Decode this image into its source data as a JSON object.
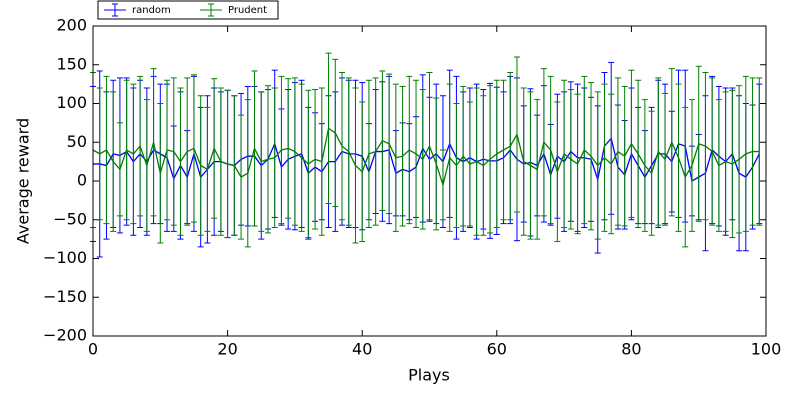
{
  "chart_data": {
    "type": "errorbar",
    "xlabel": "Plays",
    "ylabel": "Average reward",
    "xlim": [
      0,
      100
    ],
    "ylim": [
      -200,
      200
    ],
    "xticks": [
      0,
      20,
      40,
      60,
      80,
      100
    ],
    "yticks": [
      {
        "value": -200,
        "label": "−200"
      },
      {
        "value": -150,
        "label": "−150"
      },
      {
        "value": -100,
        "label": "−100"
      },
      {
        "value": -50,
        "label": "−50"
      },
      0,
      50,
      100,
      150,
      200
    ],
    "legend": "upper left",
    "x": [
      0,
      1,
      2,
      3,
      4,
      5,
      6,
      7,
      8,
      9,
      10,
      11,
      12,
      13,
      14,
      15,
      16,
      17,
      18,
      19,
      20,
      21,
      22,
      23,
      24,
      25,
      26,
      27,
      28,
      29,
      30,
      31,
      32,
      33,
      34,
      35,
      36,
      37,
      38,
      39,
      40,
      41,
      42,
      43,
      44,
      45,
      46,
      47,
      48,
      49,
      50,
      51,
      52,
      53,
      54,
      55,
      56,
      57,
      58,
      59,
      60,
      61,
      62,
      63,
      64,
      65,
      66,
      67,
      68,
      69,
      70,
      71,
      72,
      73,
      74,
      75,
      76,
      77,
      78,
      79,
      80,
      81,
      82,
      83,
      84,
      85,
      86,
      87,
      88,
      89,
      90,
      91,
      92,
      93,
      94,
      95,
      96,
      97,
      98,
      99
    ],
    "series": [
      {
        "name": "random",
        "color": "#0000ff",
        "values": [
          22,
          22,
          20,
          35,
          33,
          38,
          25,
          35,
          25,
          40,
          35,
          30,
          3,
          20,
          5,
          35,
          5,
          15,
          25,
          25,
          22,
          20,
          28,
          32,
          32,
          20,
          28,
          48,
          18,
          28,
          32,
          35,
          10,
          18,
          12,
          25,
          25,
          38,
          35,
          35,
          32,
          12,
          38,
          38,
          40,
          10,
          15,
          12,
          18,
          42,
          28,
          35,
          25,
          48,
          30,
          25,
          30,
          25,
          28,
          26,
          26,
          30,
          40,
          28,
          22,
          24,
          20,
          35,
          8,
          32,
          25,
          38,
          30,
          30,
          28,
          2,
          45,
          55,
          18,
          8,
          35,
          20,
          5,
          20,
          35,
          35,
          25,
          48,
          45,
          0,
          5,
          10,
          40,
          32,
          25,
          35,
          10,
          5,
          18,
          35
        ],
        "errors": [
          100,
          120,
          95,
          95,
          100,
          95,
          95,
          95,
          95,
          95,
          90,
          95,
          68,
          95,
          60,
          100,
          90,
          95,
          95,
          90,
          95,
          90,
          85,
          90,
          90,
          95,
          90,
          95,
          75,
          90,
          95,
          95,
          85,
          70,
          62,
          85,
          90,
          95,
          95,
          95,
          95,
          62,
          80,
          90,
          95,
          55,
          60,
          62,
          65,
          95,
          80,
          90,
          85,
          95,
          105,
          90,
          90,
          100,
          90,
          100,
          95,
          85,
          95,
          105,
          75,
          95,
          65,
          88,
          65,
          80,
          90,
          90,
          95,
          90,
          80,
          95,
          95,
          98,
          80,
          70,
          85,
          75,
          60,
          75,
          95,
          90,
          65,
          95,
          98,
          45,
          55,
          100,
          95,
          90,
          95,
          85,
          100,
          95,
          80,
          90
        ]
      },
      {
        "name": "Prudent",
        "color": "#008000",
        "values": [
          40,
          35,
          40,
          25,
          15,
          40,
          35,
          45,
          20,
          50,
          10,
          40,
          38,
          25,
          38,
          42,
          20,
          15,
          42,
          25,
          22,
          20,
          5,
          10,
          42,
          25,
          28,
          30,
          40,
          42,
          38,
          30,
          22,
          28,
          25,
          68,
          62,
          45,
          38,
          20,
          12,
          35,
          38,
          52,
          48,
          30,
          32,
          40,
          35,
          28,
          45,
          22,
          -5,
          30,
          20,
          32,
          22,
          25,
          20,
          28,
          35,
          40,
          45,
          60,
          25,
          20,
          15,
          50,
          40,
          12,
          35,
          28,
          22,
          40,
          32,
          20,
          30,
          22,
          38,
          32,
          48,
          35,
          20,
          10,
          38,
          28,
          50,
          30,
          5,
          20,
          48,
          45,
          38,
          20,
          25,
          22,
          28,
          35,
          38,
          38
        ],
        "errors": [
          100,
          85,
          95,
          90,
          60,
          90,
          90,
          90,
          85,
          95,
          90,
          90,
          95,
          95,
          95,
          95,
          90,
          80,
          90,
          95,
          95,
          90,
          80,
          95,
          100,
          90,
          95,
          90,
          95,
          90,
          95,
          95,
          95,
          90,
          95,
          97,
          95,
          95,
          95,
          100,
          90,
          95,
          95,
          90,
          90,
          95,
          90,
          95,
          95,
          90,
          95,
          85,
          45,
          95,
          80,
          90,
          80,
          95,
          90,
          95,
          95,
          90,
          95,
          100,
          95,
          95,
          90,
          95,
          95,
          90,
          95,
          90,
          90,
          95,
          95,
          95,
          95,
          90,
          95,
          90,
          95,
          95,
          85,
          80,
          95,
          85,
          95,
          95,
          90,
          85,
          100,
          95,
          95,
          85,
          90,
          95,
          95,
          100,
          95,
          95
        ]
      }
    ]
  }
}
